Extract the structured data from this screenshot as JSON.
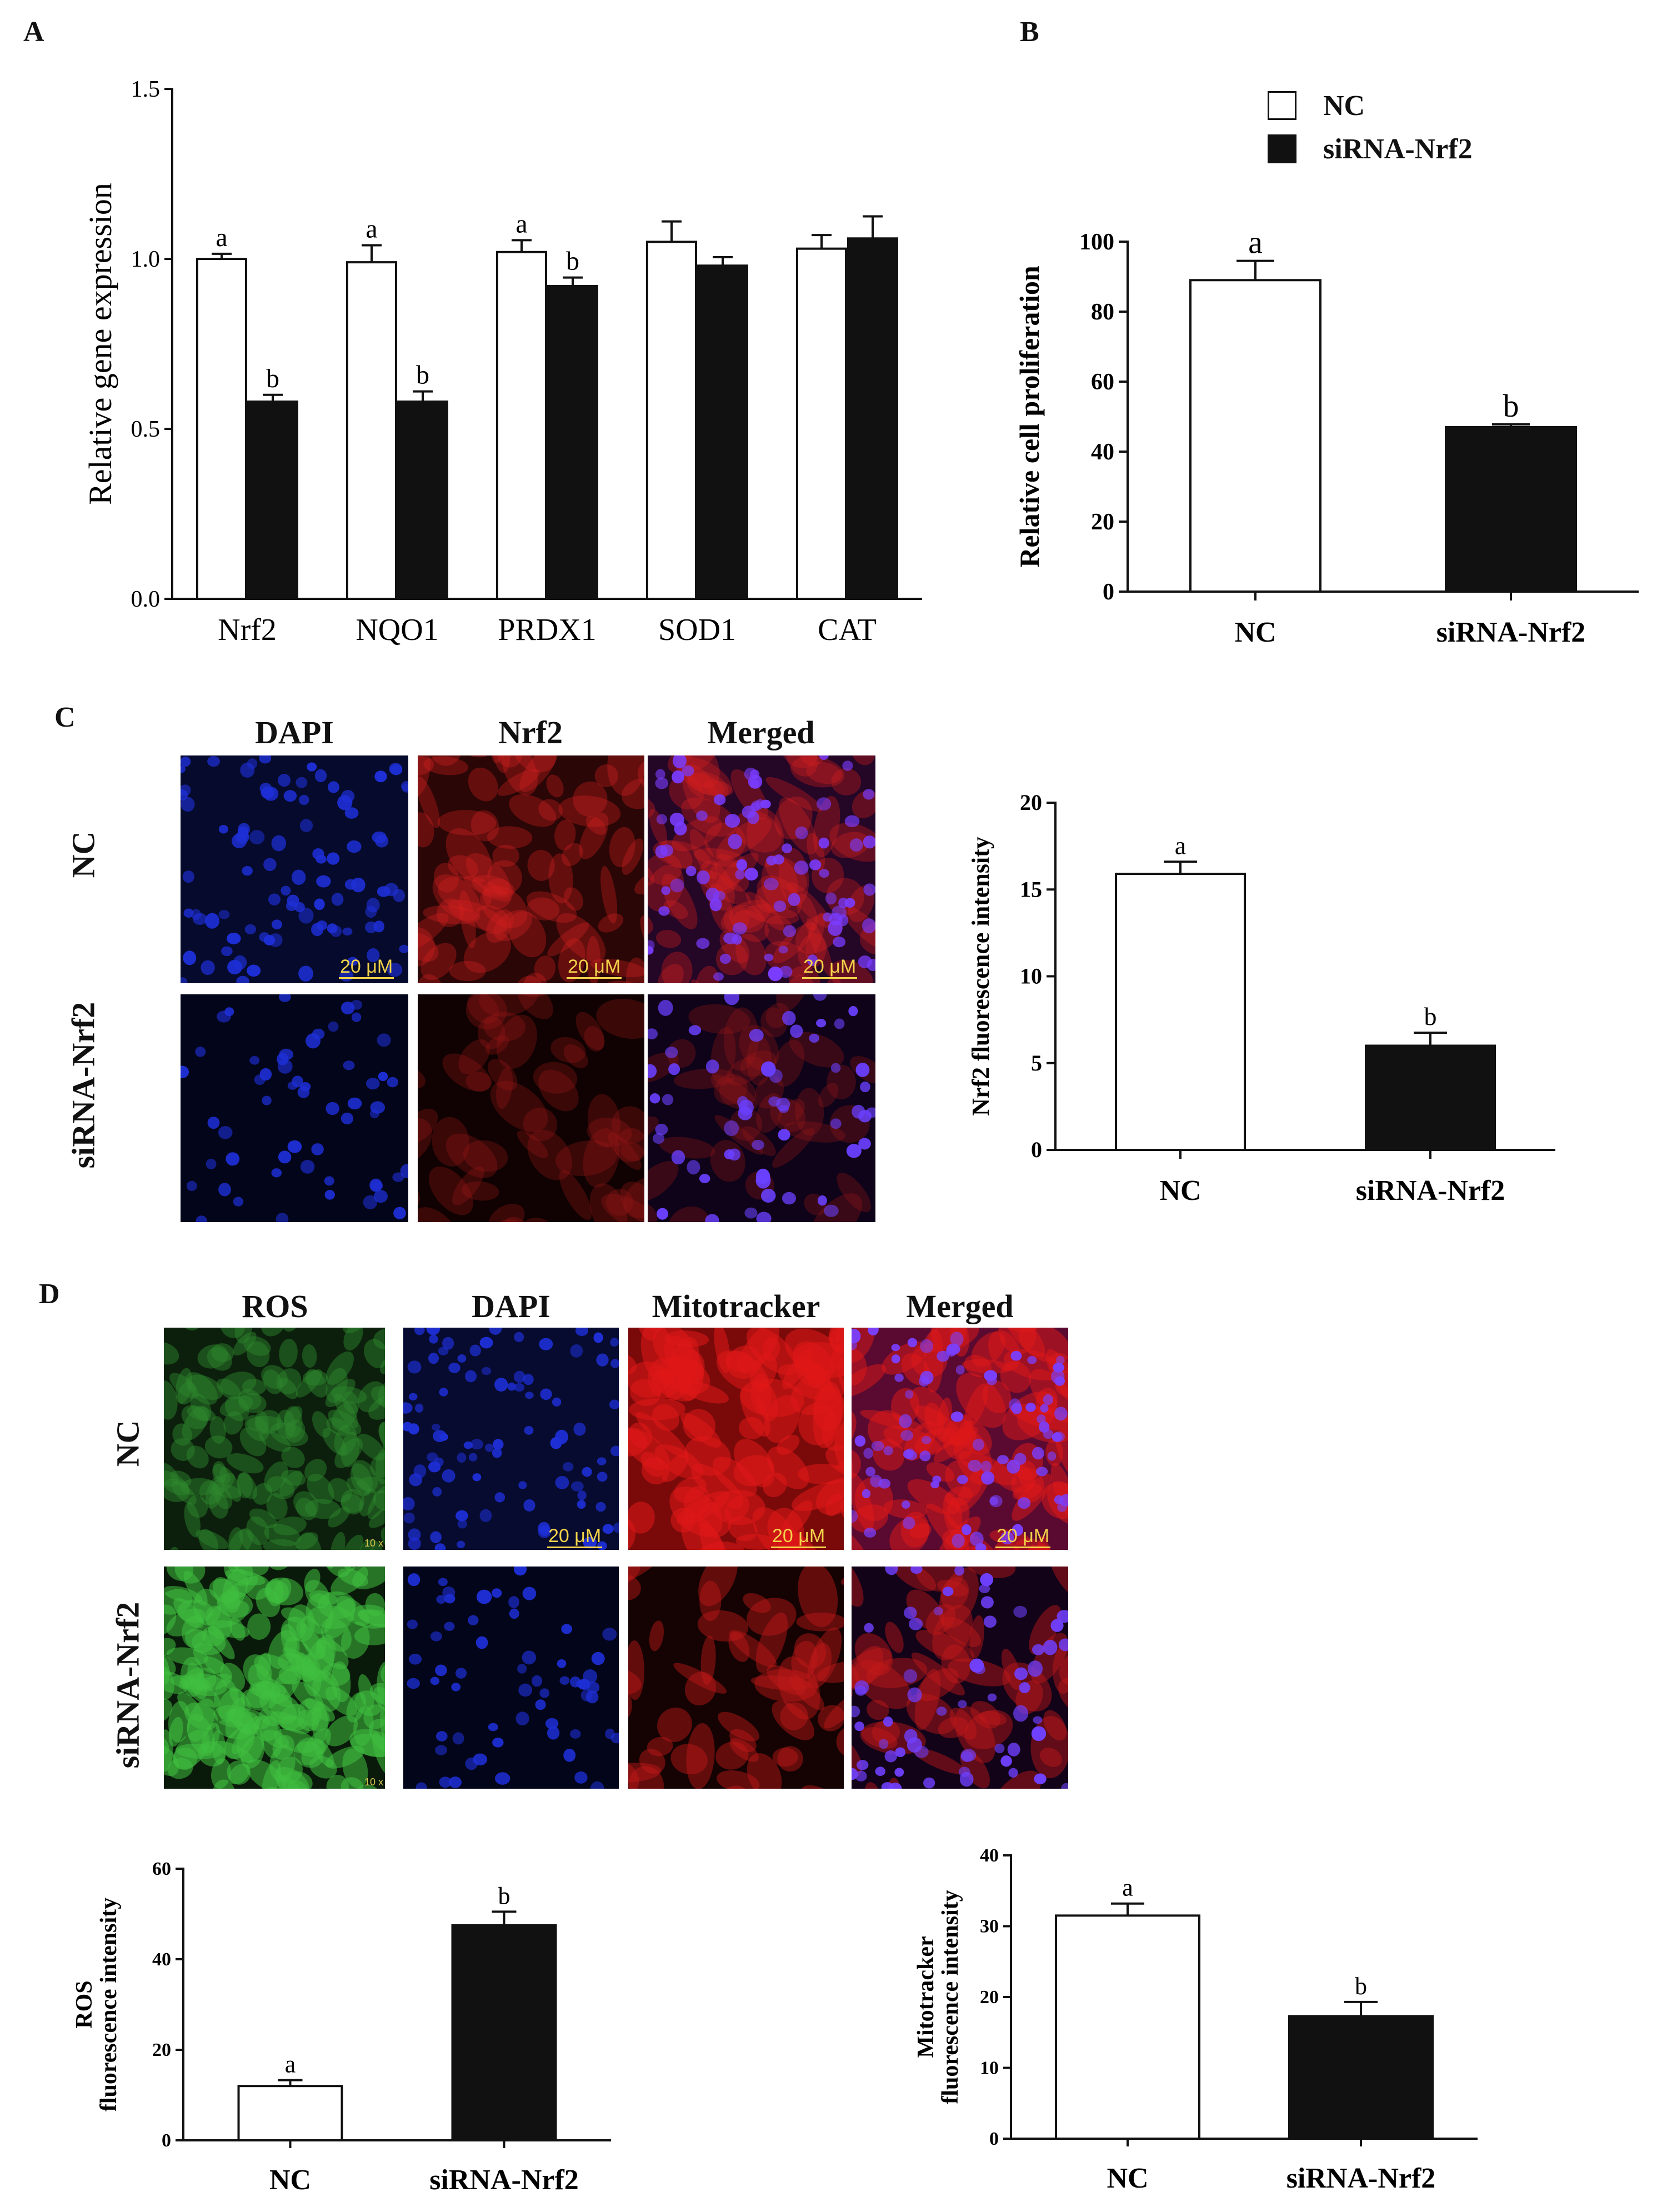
{
  "panels": {
    "A": "A",
    "B": "B",
    "C": "C",
    "D": "D"
  },
  "legend": {
    "nc": "NC",
    "sirna": "siRNA-Nrf2"
  },
  "micro": {
    "c_headers": [
      "DAPI",
      "Nrf2",
      "Merged"
    ],
    "d_headers": [
      "ROS",
      "DAPI",
      "Mitotracker",
      "Merged"
    ],
    "row_labels": [
      "NC",
      "siRNA-Nrf2"
    ],
    "scale": "20 μM",
    "mag": "10 x"
  },
  "colors": {
    "nc_bar": "#ffffff",
    "sirna_bar": "#111111",
    "dapi": "#1e2fd6",
    "nrf2": "#d42020",
    "ros": "#3fbf3f",
    "mito": "#e01818"
  },
  "chart_data": [
    {
      "id": "A",
      "type": "bar",
      "ylabel": "Relative gene expression",
      "categories": [
        "Nrf2",
        "NQO1",
        "PRDX1",
        "SOD1",
        "CAT"
      ],
      "ylim": [
        0,
        1.5
      ],
      "yticks": [
        "0.0",
        "0.5",
        "1.0",
        "1.5"
      ],
      "series": [
        {
          "name": "NC",
          "values": [
            1.0,
            0.99,
            1.02,
            1.05,
            1.03
          ],
          "errors": [
            0.015,
            0.05,
            0.035,
            0.06,
            0.04
          ],
          "letters": [
            "a",
            "a",
            "a",
            "",
            ""
          ]
        },
        {
          "name": "siRNA-Nrf2",
          "values": [
            0.58,
            0.58,
            0.92,
            0.98,
            1.06
          ],
          "errors": [
            0.02,
            0.03,
            0.025,
            0.025,
            0.065
          ],
          "letters": [
            "b",
            "b",
            "b",
            "",
            ""
          ]
        }
      ]
    },
    {
      "id": "B",
      "type": "bar",
      "ylabel": "Relative cell proliferation",
      "categories": [
        "NC",
        "siRNA-Nrf2"
      ],
      "ylim": [
        0,
        100
      ],
      "yticks": [
        "0",
        "20",
        "40",
        "60",
        "80",
        "100"
      ],
      "values": [
        89,
        47
      ],
      "errors": [
        5.5,
        0.8
      ],
      "letters": [
        "a",
        "b"
      ]
    },
    {
      "id": "C",
      "type": "bar",
      "ylabel": "Nrf2 fluorescence intensity",
      "categories": [
        "NC",
        "siRNA-Nrf2"
      ],
      "ylim": [
        0,
        20
      ],
      "yticks": [
        "0",
        "5",
        "10",
        "15",
        "20"
      ],
      "values": [
        15.9,
        6.0
      ],
      "errors": [
        0.7,
        0.75
      ],
      "letters": [
        "a",
        "b"
      ]
    },
    {
      "id": "D1",
      "type": "bar",
      "ylabel": [
        "ROS",
        "fluorescence intensity"
      ],
      "categories": [
        "NC",
        "siRNA-Nrf2"
      ],
      "ylim": [
        0,
        60
      ],
      "yticks": [
        "0",
        "20",
        "40",
        "60"
      ],
      "values": [
        12,
        47.5
      ],
      "errors": [
        1.3,
        3.0
      ],
      "letters": [
        "a",
        "b"
      ]
    },
    {
      "id": "D2",
      "type": "bar",
      "ylabel": [
        "Mitotracker",
        "fluorescence intensity"
      ],
      "categories": [
        "NC",
        "siRNA-Nrf2"
      ],
      "ylim": [
        0,
        40
      ],
      "yticks": [
        "0",
        "10",
        "20",
        "30",
        "40"
      ],
      "values": [
        31.5,
        17.3
      ],
      "errors": [
        1.7,
        2.0
      ],
      "letters": [
        "a",
        "b"
      ]
    }
  ]
}
